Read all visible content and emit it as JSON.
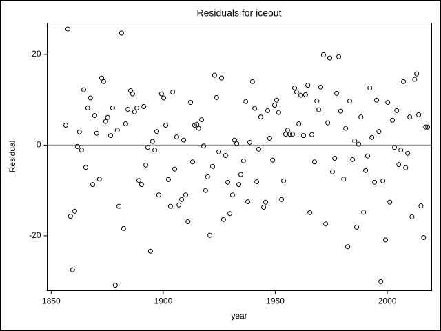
{
  "chart_data": {
    "type": "scatter",
    "title": "Residuals for iceout",
    "x_label": "year",
    "y_label": "Residual",
    "xlim": [
      1848.2,
      2019.8
    ],
    "ylim": [
      -32.1,
      26.9
    ],
    "xticks": [
      1850,
      1900,
      1950,
      2000
    ],
    "yticks": [
      -20,
      0,
      20
    ],
    "refline": 0,
    "color": "#000000",
    "x": [
      1856.5,
      1857.4,
      1858.6,
      1859.5,
      1860.5,
      1861.7,
      1862.6,
      1863.5,
      1864.5,
      1865.4,
      1866.3,
      1867.5,
      1868.5,
      1869.4,
      1870.3,
      1871.5,
      1872.5,
      1873.4,
      1874.3,
      1875.2,
      1876.5,
      1877.4,
      1878.6,
      1879.5,
      1880.2,
      1881.4,
      1882.3,
      1883.2,
      1884.2,
      1885.4,
      1886.3,
      1887.2,
      1888.2,
      1889.1,
      1890.3,
      1891.3,
      1892.2,
      1893.1,
      1894.3,
      1895.2,
      1896.2,
      1897.1,
      1898.0,
      1899.2,
      1900.2,
      1901.1,
      1902.3,
      1903.2,
      1904.2,
      1905.1,
      1906.0,
      1907.0,
      1908.2,
      1909.1,
      1910.0,
      1911.0,
      1912.2,
      1913.1,
      1914.0,
      1915.0,
      1915.8,
      1917.1,
      1918.0,
      1918.9,
      1919.8,
      1920.8,
      1922.0,
      1922.9,
      1923.8,
      1924.8,
      1926.0,
      1926.9,
      1927.8,
      1928.8,
      1929.7,
      1930.9,
      1931.8,
      1932.8,
      1933.7,
      1934.6,
      1935.8,
      1936.8,
      1937.7,
      1938.6,
      1939.8,
      1940.8,
      1941.7,
      1942.6,
      1943.5,
      1944.8,
      1945.7,
      1946.6,
      1947.5,
      1948.8,
      1949.7,
      1950.6,
      1951.5,
      1952.8,
      1953.7,
      1954.6,
      1955.5,
      1956.5,
      1957.7,
      1958.6,
      1959.5,
      1960.5,
      1961.4,
      1962.6,
      1963.5,
      1964.5,
      1965.4,
      1966.3,
      1967.5,
      1968.5,
      1969.4,
      1970.3,
      1971.5,
      1972.5,
      1973.4,
      1974.3,
      1975.5,
      1976.5,
      1977.4,
      1978.3,
      1979.2,
      1980.5,
      1981.4,
      1982.3,
      1983.2,
      1984.5,
      1985.4,
      1986.3,
      1987.2,
      1988.2,
      1989.4,
      1990.3,
      1991.2,
      1992.2,
      1993.1,
      1994.3,
      1995.2,
      1996.2,
      1997.1,
      1998.0,
      1999.2,
      2000.2,
      2001.1,
      2002.3,
      2003.2,
      2004.2,
      2005.1,
      2006.0,
      2007.2,
      2008.2,
      2009.1,
      2010.0,
      2011.0,
      2012.2,
      2013.1,
      2014.0,
      2015.0,
      2016.2,
      2017.1,
      2018.0
    ],
    "y": [
      4.4,
      25.6,
      -15.7,
      -27.5,
      -14.6,
      -0.3,
      2.9,
      -1.1,
      12.2,
      -4.9,
      8.2,
      10.4,
      -8.7,
      6.5,
      2.6,
      -7.5,
      14.8,
      14.0,
      5.2,
      6.1,
      2.1,
      8.2,
      -30.9,
      3.3,
      -13.5,
      24.7,
      -18.4,
      4.7,
      7.9,
      12.0,
      11.3,
      7.3,
      8.2,
      -7.8,
      -8.7,
      8.5,
      -4.4,
      -0.5,
      -23.4,
      0.8,
      -1.1,
      3.0,
      -11.0,
      11.3,
      10.4,
      4.4,
      -7.6,
      -13.5,
      11.7,
      -5.3,
      1.8,
      -13.2,
      -12.0,
      1.1,
      -11.0,
      -16.9,
      9.4,
      -3.7,
      4.4,
      4.6,
      3.7,
      5.6,
      -0.2,
      -10.0,
      -7.0,
      -19.9,
      -4.7,
      15.4,
      10.5,
      -1.5,
      14.8,
      -16.4,
      -2.3,
      -8.2,
      -15.1,
      -11.0,
      1.1,
      0.3,
      -8.7,
      -6.5,
      -3.5,
      9.6,
      -12.5,
      0.6,
      14.0,
      8.1,
      -8.1,
      -0.9,
      6.2,
      -13.7,
      -12.6,
      7.6,
      1.5,
      -3.3,
      8.8,
      9.9,
      7.2,
      -12.0,
      -7.9,
      2.4,
      3.3,
      2.4,
      2.4,
      12.6,
      11.7,
      4.7,
      11.0,
      2.1,
      11.1,
      13.2,
      -14.9,
      2.3,
      -3.7,
      9.7,
      7.8,
      12.8,
      19.9,
      -17.4,
      4.9,
      19.2,
      -5.9,
      -2.9,
      11.4,
      19.5,
      7.5,
      -7.5,
      3.7,
      -22.4,
      9.7,
      -3.2,
      0.9,
      -18.1,
      0.2,
      6.2,
      -14.8,
      -5.6,
      -2.4,
      12.6,
      1.7,
      -8.2,
      9.9,
      3.0,
      -30.1,
      -7.9,
      -20.9,
      9.4,
      -12.6,
      5.5,
      -0.5,
      7.6,
      -4.3,
      -1.1,
      14.0,
      -5.0,
      -1.8,
      6.2,
      -15.8,
      14.5,
      15.7,
      6.7,
      -13.4,
      -20.4,
      4.0,
      4.0
    ]
  }
}
